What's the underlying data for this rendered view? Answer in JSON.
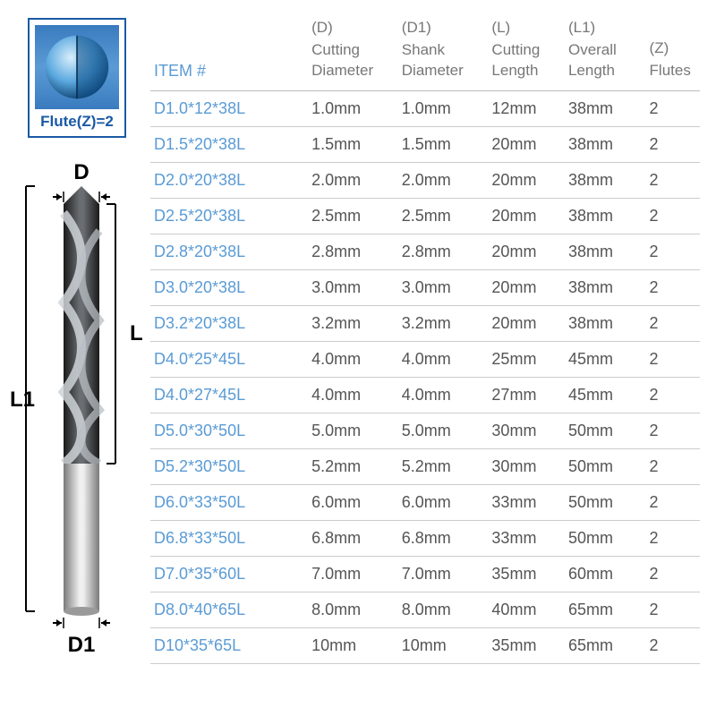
{
  "flute": {
    "label": "Flute(Z)=2"
  },
  "diagram": {
    "labels": {
      "D": "D",
      "D1": "D1",
      "L": "L",
      "L1": "L1"
    },
    "label_color": "#000000",
    "label_fontsize": 24,
    "arrow_color": "#000000",
    "bit_dark_gradient": [
      "#1a1a1a",
      "#555555",
      "#1a1a1a"
    ],
    "bit_light_gradient": [
      "#8a8a8a",
      "#e8e8e8",
      "#8a8a8a"
    ]
  },
  "table": {
    "header": {
      "item": "ITEM #",
      "D_sym": "(D)",
      "D": "Cutting Diameter",
      "D1_sym": "(D1)",
      "D1": "Shank Diameter",
      "L_sym": "(L)",
      "L": "Cutting Length",
      "L1_sym": "(L1)",
      "L1": "Overall Length",
      "Z_sym": "(Z)",
      "Z": "Flutes"
    },
    "header_color": "#777777",
    "item_header_color": "#5a9bd5",
    "row_text_color": "#555555",
    "item_text_color": "#5a9bd5",
    "border_color": "#cccccc",
    "fontsize": 18,
    "rows": [
      {
        "item": "D1.0*12*38L",
        "D": "1.0mm",
        "D1": "1.0mm",
        "L": "12mm",
        "L1": "38mm",
        "Z": "2"
      },
      {
        "item": "D1.5*20*38L",
        "D": "1.5mm",
        "D1": "1.5mm",
        "L": "20mm",
        "L1": "38mm",
        "Z": "2"
      },
      {
        "item": "D2.0*20*38L",
        "D": "2.0mm",
        "D1": "2.0mm",
        "L": "20mm",
        "L1": "38mm",
        "Z": "2"
      },
      {
        "item": "D2.5*20*38L",
        "D": "2.5mm",
        "D1": "2.5mm",
        "L": "20mm",
        "L1": "38mm",
        "Z": "2"
      },
      {
        "item": "D2.8*20*38L",
        "D": "2.8mm",
        "D1": "2.8mm",
        "L": "20mm",
        "L1": "38mm",
        "Z": "2"
      },
      {
        "item": "D3.0*20*38L",
        "D": "3.0mm",
        "D1": "3.0mm",
        "L": "20mm",
        "L1": "38mm",
        "Z": "2"
      },
      {
        "item": "D3.2*20*38L",
        "D": "3.2mm",
        "D1": "3.2mm",
        "L": "20mm",
        "L1": "38mm",
        "Z": "2"
      },
      {
        "item": "D4.0*25*45L",
        "D": "4.0mm",
        "D1": "4.0mm",
        "L": "25mm",
        "L1": "45mm",
        "Z": "2"
      },
      {
        "item": "D4.0*27*45L",
        "D": "4.0mm",
        "D1": "4.0mm",
        "L": "27mm",
        "L1": "45mm",
        "Z": "2"
      },
      {
        "item": "D5.0*30*50L",
        "D": "5.0mm",
        "D1": "5.0mm",
        "L": "30mm",
        "L1": "50mm",
        "Z": "2"
      },
      {
        "item": "D5.2*30*50L",
        "D": "5.2mm",
        "D1": "5.2mm",
        "L": "30mm",
        "L1": "50mm",
        "Z": "2"
      },
      {
        "item": "D6.0*33*50L",
        "D": "6.0mm",
        "D1": "6.0mm",
        "L": "33mm",
        "L1": "50mm",
        "Z": "2"
      },
      {
        "item": "D6.8*33*50L",
        "D": "6.8mm",
        "D1": "6.8mm",
        "L": "33mm",
        "L1": "50mm",
        "Z": "2"
      },
      {
        "item": "D7.0*35*60L",
        "D": "7.0mm",
        "D1": "7.0mm",
        "L": "35mm",
        "L1": "60mm",
        "Z": "2"
      },
      {
        "item": "D8.0*40*65L",
        "D": "8.0mm",
        "D1": "8.0mm",
        "L": "40mm",
        "L1": "65mm",
        "Z": "2"
      },
      {
        "item": "D10*35*65L",
        "D": "10mm",
        "D1": "10mm",
        "L": "35mm",
        "L1": "65mm",
        "Z": "2"
      }
    ]
  }
}
